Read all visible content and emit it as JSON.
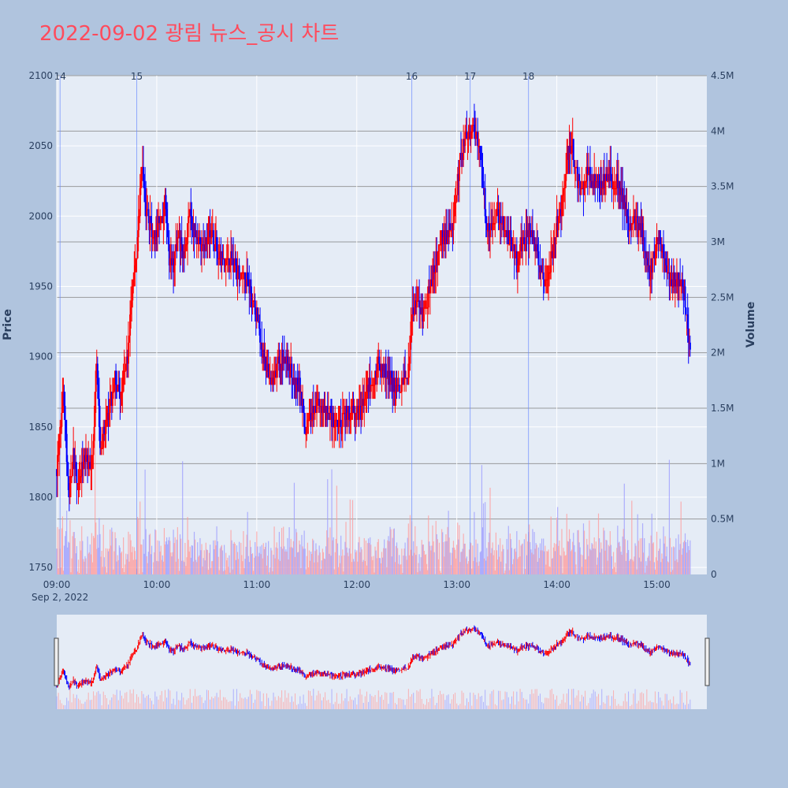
{
  "chart_data": {
    "type": "candlestick",
    "title": "2022-09-02 광림 뉴스_공시 차트",
    "ylabel": "Price",
    "y2label": "Volume",
    "date_label": "Sep 2, 2022",
    "ylim": [
      1745,
      2100
    ],
    "y2lim": [
      0,
      4500000
    ],
    "y_ticks": [
      1750,
      1800,
      1850,
      1900,
      1950,
      2000,
      2050,
      2100
    ],
    "y2_ticks": [
      {
        "value": 0,
        "label": "0"
      },
      {
        "value": 500000,
        "label": "0.5M"
      },
      {
        "value": 1000000,
        "label": "1M"
      },
      {
        "value": 1500000,
        "label": "1.5M"
      },
      {
        "value": 2000000,
        "label": "2M"
      },
      {
        "value": 2500000,
        "label": "2.5M"
      },
      {
        "value": 3000000,
        "label": "3M"
      },
      {
        "value": 3500000,
        "label": "3.5M"
      },
      {
        "value": 4000000,
        "label": "4M"
      },
      {
        "value": 4500000,
        "label": "4.5M"
      }
    ],
    "x_range": [
      "09:00",
      "15:30"
    ],
    "x_ticks": [
      "09:00",
      "10:00",
      "11:00",
      "12:00",
      "13:00",
      "14:00",
      "15:00"
    ],
    "news_markers": [
      {
        "label": "14",
        "time": "09:02"
      },
      {
        "label": "15",
        "time": "09:48"
      },
      {
        "label": "16",
        "time": "12:33"
      },
      {
        "label": "17",
        "time": "13:08"
      },
      {
        "label": "18",
        "time": "13:43"
      }
    ],
    "price_keypoints": [
      [
        "09:00",
        1820
      ],
      [
        "09:04",
        1880
      ],
      [
        "09:07",
        1800
      ],
      [
        "09:10",
        1830
      ],
      [
        "09:13",
        1810
      ],
      [
        "09:17",
        1830
      ],
      [
        "09:20",
        1815
      ],
      [
        "09:22",
        1840
      ],
      [
        "09:24",
        1900
      ],
      [
        "09:26",
        1830
      ],
      [
        "09:30",
        1855
      ],
      [
        "09:33",
        1870
      ],
      [
        "09:35",
        1885
      ],
      [
        "09:38",
        1870
      ],
      [
        "09:41",
        1895
      ],
      [
        "09:43",
        1905
      ],
      [
        "09:46",
        1960
      ],
      [
        "09:48",
        1975
      ],
      [
        "09:51",
        2035
      ],
      [
        "09:53",
        2010
      ],
      [
        "09:55",
        1995
      ],
      [
        "09:58",
        1985
      ],
      [
        "10:02",
        1995
      ],
      [
        "10:05",
        2010
      ],
      [
        "10:07",
        1975
      ],
      [
        "10:10",
        1965
      ],
      [
        "10:13",
        1985
      ],
      [
        "10:16",
        1975
      ],
      [
        "10:20",
        2000
      ],
      [
        "10:23",
        1985
      ],
      [
        "10:28",
        1975
      ],
      [
        "10:32",
        1990
      ],
      [
        "10:38",
        1970
      ],
      [
        "10:43",
        1970
      ],
      [
        "10:48",
        1960
      ],
      [
        "10:52",
        1955
      ],
      [
        "10:56",
        1950
      ],
      [
        "11:00",
        1930
      ],
      [
        "11:03",
        1905
      ],
      [
        "11:06",
        1895
      ],
      [
        "11:09",
        1880
      ],
      [
        "11:12",
        1890
      ],
      [
        "11:15",
        1900
      ],
      [
        "11:18",
        1895
      ],
      [
        "11:22",
        1885
      ],
      [
        "11:26",
        1875
      ],
      [
        "11:29",
        1850
      ],
      [
        "11:33",
        1860
      ],
      [
        "11:36",
        1865
      ],
      [
        "11:40",
        1865
      ],
      [
        "11:43",
        1860
      ],
      [
        "11:46",
        1855
      ],
      [
        "11:50",
        1850
      ],
      [
        "11:53",
        1855
      ],
      [
        "11:56",
        1860
      ],
      [
        "12:00",
        1858
      ],
      [
        "12:04",
        1865
      ],
      [
        "12:07",
        1880
      ],
      [
        "12:10",
        1885
      ],
      [
        "12:13",
        1895
      ],
      [
        "12:16",
        1893
      ],
      [
        "12:20",
        1885
      ],
      [
        "12:24",
        1875
      ],
      [
        "12:28",
        1880
      ],
      [
        "12:31",
        1890
      ],
      [
        "12:33",
        1935
      ],
      [
        "12:36",
        1940
      ],
      [
        "12:40",
        1930
      ],
      [
        "12:43",
        1945
      ],
      [
        "12:46",
        1960
      ],
      [
        "12:49",
        1980
      ],
      [
        "12:52",
        1990
      ],
      [
        "12:55",
        1985
      ],
      [
        "12:58",
        2000
      ],
      [
        "13:01",
        2030
      ],
      [
        "13:04",
        2050
      ],
      [
        "13:07",
        2060
      ],
      [
        "13:10",
        2065
      ],
      [
        "13:13",
        2055
      ],
      [
        "13:15",
        2040
      ],
      [
        "13:18",
        1990
      ],
      [
        "13:21",
        1995
      ],
      [
        "13:24",
        2000
      ],
      [
        "13:27",
        1995
      ],
      [
        "13:30",
        1990
      ],
      [
        "13:33",
        1980
      ],
      [
        "13:36",
        1965
      ],
      [
        "13:39",
        1980
      ],
      [
        "13:42",
        1990
      ],
      [
        "13:45",
        1985
      ],
      [
        "13:48",
        1975
      ],
      [
        "13:51",
        1955
      ],
      [
        "13:54",
        1955
      ],
      [
        "13:57",
        1970
      ],
      [
        "14:00",
        1995
      ],
      [
        "14:03",
        2010
      ],
      [
        "14:06",
        2040
      ],
      [
        "14:09",
        2055
      ],
      [
        "14:12",
        2030
      ],
      [
        "14:15",
        2015
      ],
      [
        "14:18",
        2030
      ],
      [
        "14:21",
        2025
      ],
      [
        "14:24",
        2020
      ],
      [
        "14:27",
        2025
      ],
      [
        "14:30",
        2030
      ],
      [
        "14:34",
        2025
      ],
      [
        "14:38",
        2020
      ],
      [
        "14:41",
        2005
      ],
      [
        "14:44",
        1990
      ],
      [
        "14:47",
        1995
      ],
      [
        "14:50",
        1990
      ],
      [
        "14:53",
        1980
      ],
      [
        "14:56",
        1960
      ],
      [
        "14:59",
        1975
      ],
      [
        "15:02",
        1985
      ],
      [
        "15:05",
        1965
      ],
      [
        "15:08",
        1955
      ],
      [
        "15:11",
        1950
      ],
      [
        "15:14",
        1955
      ],
      [
        "15:17",
        1940
      ],
      [
        "15:19",
        1910
      ],
      [
        "15:20",
        1905
      ]
    ]
  }
}
